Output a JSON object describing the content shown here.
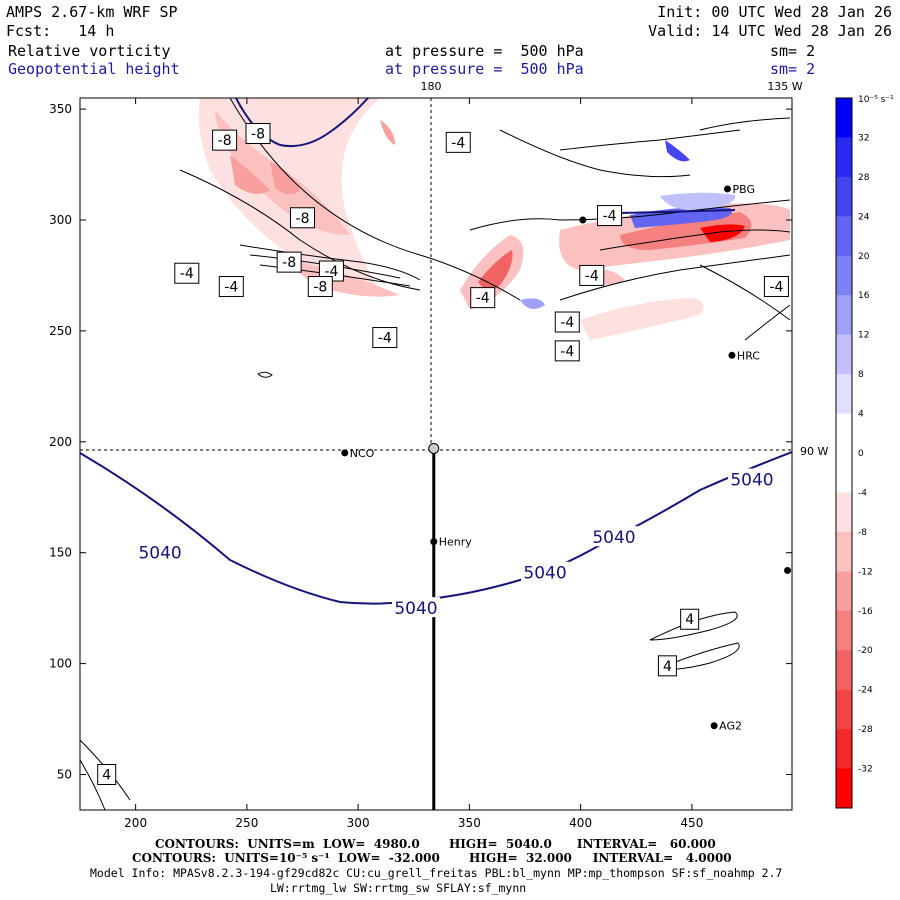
{
  "header": {
    "model": "AMPS 2.67-km WRF SP",
    "init": "Init: 00 UTC Wed 28 Jan 26",
    "forecast": "Fcst:   14 h",
    "valid": "Valid: 14 UTC Wed 28 Jan 26",
    "field1": "Relative vorticity",
    "field1_level": "at pressure =  500 hPa",
    "field1_smooth": "sm= 2",
    "field2": "Geopotential height",
    "field2_level": "at pressure =  500 hPa",
    "field2_smooth": "sm= 2"
  },
  "map_labels": {
    "lon_180": "180",
    "lon_135w": "135 W",
    "lon_90w": "90 W"
  },
  "stations": [
    {
      "name": "NCO",
      "x": 294,
      "y": 195
    },
    {
      "name": "Henry",
      "x": 334,
      "y": 155
    },
    {
      "name": "HRC",
      "x": 468,
      "y": 239
    },
    {
      "name": "AG2",
      "x": 460,
      "y": 72
    },
    {
      "name": "PBG",
      "x": 466,
      "y": 314
    },
    {
      "name": "",
      "x": 401,
      "y": 300
    },
    {
      "name": "",
      "x": 493,
      "y": 142
    }
  ],
  "colorbar": {
    "units": "10⁻⁵ s⁻¹",
    "ticks": [
      "32",
      "28",
      "24",
      "20",
      "16",
      "12",
      "8",
      "4",
      "0",
      "-4",
      "-8",
      "-12",
      "-16",
      "-20",
      "-24",
      "-28",
      "-32"
    ],
    "colors": [
      "#0000ff",
      "#2a2af2",
      "#4545f0",
      "#6464f2",
      "#8080f5",
      "#a0a0f8",
      "#c0c0fb",
      "#e0e0fe",
      "#ffffff",
      "#ffffff",
      "#fde0e0",
      "#fbc0c0",
      "#f8a0a0",
      "#f58080",
      "#f26464",
      "#f04545",
      "#f22a2a",
      "#ff0000"
    ]
  },
  "footer": {
    "contours1": "CONTOURS:  UNITS=m  LOW=  4980.0       HIGH=  5040.0      INTERVAL=   60.000",
    "contours2": "CONTOURS:  UNITS=10⁻⁵ s⁻¹  LOW=  -32.000       HIGH=  32.000     INTERVAL=   4.0000",
    "model_info": "Model Info: MPASv8.2.3-194-gf29cd82c CU:cu_grell_freitas PBL:bl_mynn MP:mp_thompson SF:sf_noahmp 2.7",
    "model_info2": "LW:rrtmg_lw SW:rrtmg_sw SFLAY:sf_mynn"
  },
  "chart_data": {
    "type": "contour-map",
    "title": "Relative vorticity / Geopotential height at 500 hPa",
    "xlabel": "",
    "ylabel": "",
    "xlim": [
      175,
      495
    ],
    "ylim": [
      34,
      355
    ],
    "x_ticks": [
      200,
      250,
      300,
      350,
      400,
      450
    ],
    "y_ticks": [
      50,
      100,
      150,
      200,
      250,
      300,
      350
    ],
    "vorticity_units": "10^-5 s^-1",
    "vorticity_range": [
      -32,
      32
    ],
    "vorticity_interval": 4,
    "height_units": "m",
    "height_range": [
      4980,
      5040
    ],
    "height_interval": 60,
    "height_contour_labels": [
      {
        "text": "5040",
        "x": 211,
        "y": 150
      },
      {
        "text": "5040",
        "x": 326,
        "y": 125
      },
      {
        "text": "5040",
        "x": 384,
        "y": 141
      },
      {
        "text": "5040",
        "x": 415,
        "y": 157
      },
      {
        "text": "5040",
        "x": 477,
        "y": 183
      },
      {
        "text": "-8",
        "x": 255,
        "y": 339
      },
      {
        "text": "-8",
        "x": 240,
        "y": 336
      },
      {
        "text": "-4",
        "x": 345,
        "y": 335
      },
      {
        "text": "-8",
        "x": 275,
        "y": 301
      },
      {
        "text": "-8",
        "x": 269,
        "y": 281
      },
      {
        "text": "-4",
        "x": 288,
        "y": 277
      },
      {
        "text": "-4",
        "x": 223,
        "y": 276
      },
      {
        "text": "-4",
        "x": 243,
        "y": 270
      },
      {
        "text": "-8",
        "x": 283,
        "y": 270
      },
      {
        "text": "-4",
        "x": 312,
        "y": 247
      },
      {
        "text": "-4",
        "x": 356,
        "y": 265
      },
      {
        "text": "-4",
        "x": 405,
        "y": 275
      },
      {
        "text": "-4",
        "x": 394,
        "y": 254
      },
      {
        "text": "-4",
        "x": 394,
        "y": 241
      },
      {
        "text": "-4",
        "x": 413,
        "y": 302
      },
      {
        "text": "-4",
        "x": 488,
        "y": 270
      },
      {
        "text": "4",
        "x": 449,
        "y": 120
      },
      {
        "text": "4",
        "x": 439,
        "y": 99
      },
      {
        "text": "4",
        "x": 187,
        "y": 50
      }
    ],
    "cross_section": {
      "x": 334,
      "y_from": 34,
      "y_to": 197
    }
  }
}
